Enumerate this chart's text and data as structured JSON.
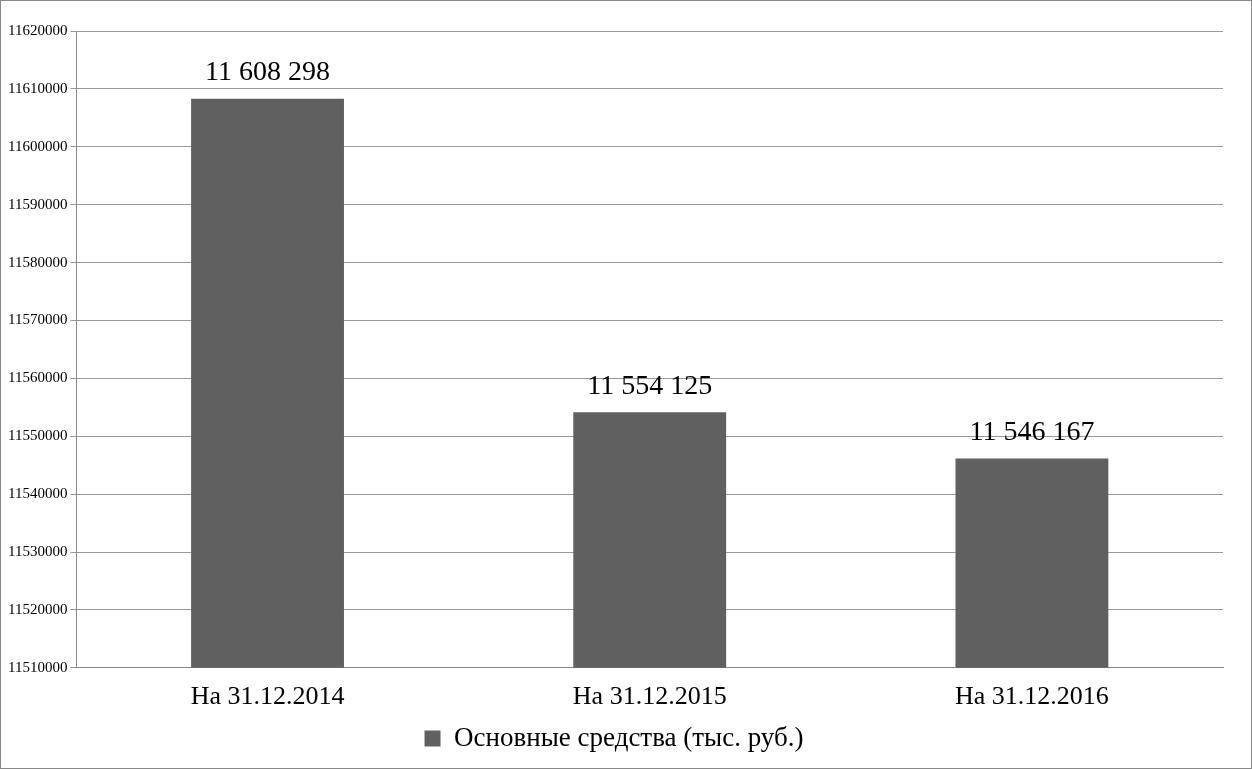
{
  "chart_data": {
    "type": "bar",
    "categories": [
      "На 31.12.2014",
      "На 31.12.2015",
      "На 31.12.2016"
    ],
    "series": [
      {
        "name": "Основные средства (тыс. руб.)",
        "color": "#606060",
        "values": [
          11608298,
          11554125,
          11546167
        ],
        "value_labels": [
          "11 608 298",
          "11 554 125",
          "11 546 167"
        ]
      }
    ],
    "ylim": [
      11510000,
      11620000
    ],
    "yticks": [
      11510000,
      11520000,
      11530000,
      11540000,
      11550000,
      11560000,
      11570000,
      11580000,
      11590000,
      11600000,
      11610000,
      11620000
    ],
    "grid": "y",
    "legend": "bottom"
  }
}
